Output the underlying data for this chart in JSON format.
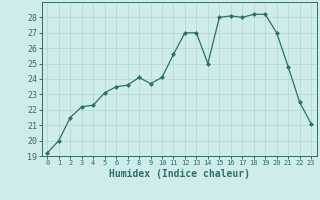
{
  "x": [
    0,
    1,
    2,
    3,
    4,
    5,
    6,
    7,
    8,
    9,
    10,
    11,
    12,
    13,
    14,
    15,
    16,
    17,
    18,
    19,
    20,
    21,
    22,
    23
  ],
  "y": [
    19.2,
    20.0,
    21.5,
    22.2,
    22.3,
    23.1,
    23.5,
    23.6,
    24.1,
    23.7,
    24.1,
    25.6,
    27.0,
    27.0,
    25.0,
    28.0,
    28.1,
    28.0,
    28.2,
    28.2,
    27.0,
    24.8,
    22.5,
    21.1
  ],
  "line_color": "#2d6e6e",
  "marker": "D",
  "marker_size": 2.0,
  "bg_color": "#ceecea",
  "grid_color": "#b0d8d4",
  "xlabel": "Humidex (Indice chaleur)",
  "ylim": [
    19,
    29
  ],
  "yticks": [
    19,
    20,
    21,
    22,
    23,
    24,
    25,
    26,
    27,
    28
  ],
  "xticks": [
    0,
    1,
    2,
    3,
    4,
    5,
    6,
    7,
    8,
    9,
    10,
    11,
    12,
    13,
    14,
    15,
    16,
    17,
    18,
    19,
    20,
    21,
    22,
    23
  ],
  "tick_color": "#2d6e6e",
  "label_color": "#2d6e6e",
  "spine_color": "#2d6e6e",
  "xlabel_fontsize": 7,
  "ytick_fontsize": 6,
  "xtick_fontsize": 5
}
